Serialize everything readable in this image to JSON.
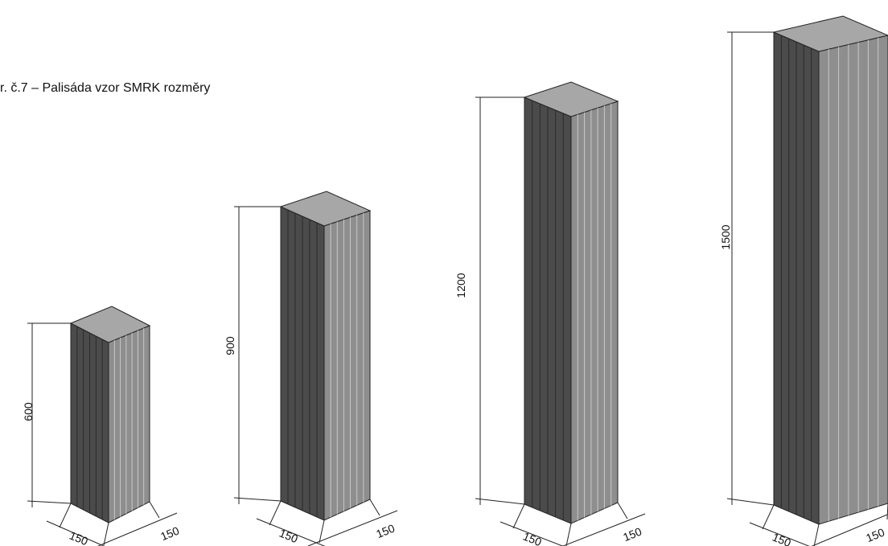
{
  "caption": "r. č.7 – Palisáda vzor SMRK rozměry",
  "palisades": [
    {
      "height_label": "600",
      "width_label_left": "150",
      "width_label_right": "150"
    },
    {
      "height_label": "900",
      "width_label_left": "150",
      "width_label_right": "150"
    },
    {
      "height_label": "1200",
      "width_label_left": "150",
      "width_label_right": "150"
    },
    {
      "height_label": "1500",
      "width_label_left": "150",
      "width_label_right": "150"
    }
  ],
  "colors": {
    "top_face": "#a7a7a7",
    "left_face": "#4b4b4b",
    "right_face": "#8e8e8e",
    "line": "#222222"
  }
}
